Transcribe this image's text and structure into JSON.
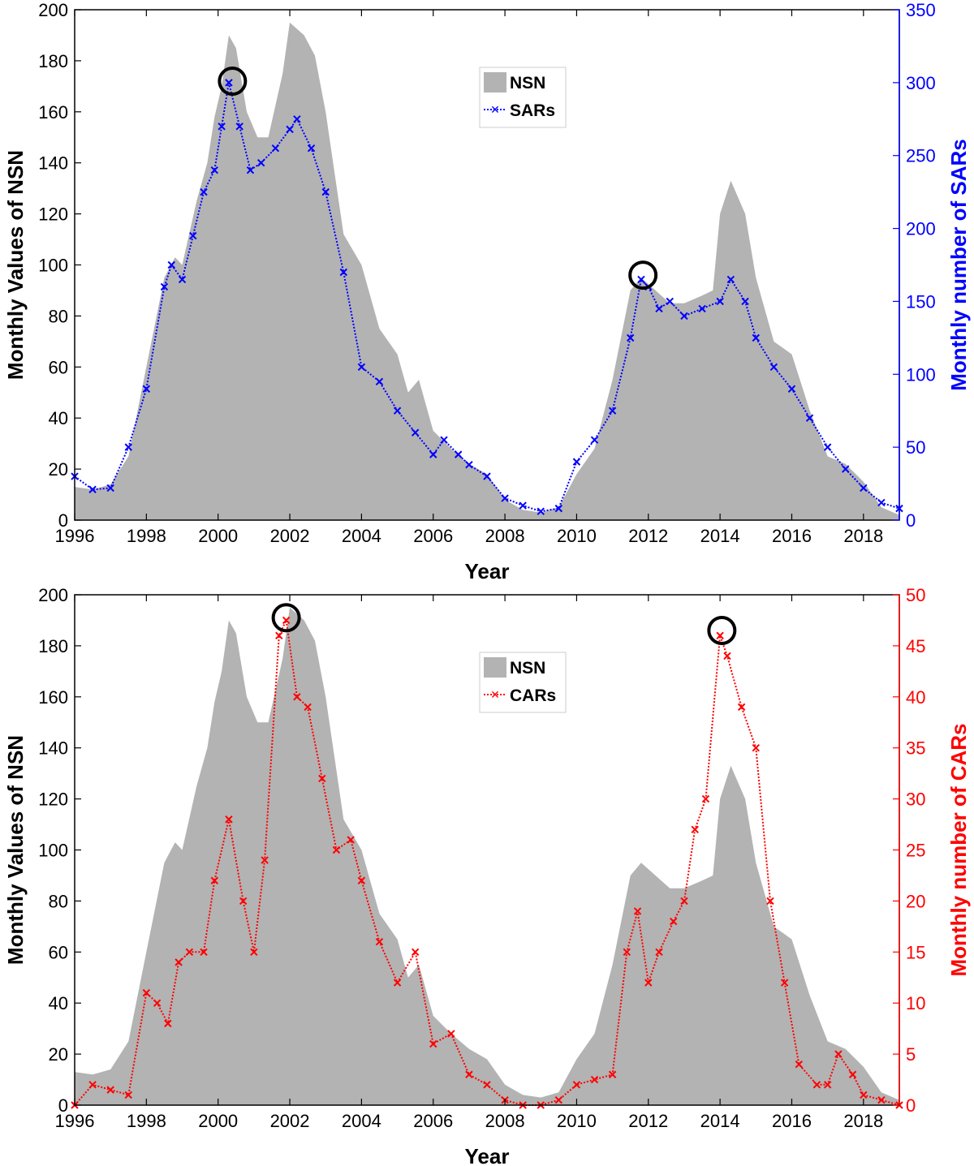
{
  "figure_title": "",
  "chart_data": [
    {
      "id": "top",
      "type": "area+line",
      "xlabel": "Year",
      "ylabel_left": "Monthly Values of NSN",
      "ylabel_right": "Monthly number of SARs",
      "xlim": [
        1996,
        2019
      ],
      "xticks": [
        1996,
        1998,
        2000,
        2002,
        2004,
        2006,
        2008,
        2010,
        2012,
        2014,
        2016,
        2018
      ],
      "ylim_left": [
        0,
        200
      ],
      "yticks_left": [
        0,
        20,
        40,
        60,
        80,
        100,
        120,
        140,
        160,
        180,
        200
      ],
      "ylim_right": [
        0,
        350
      ],
      "yticks_right": [
        0,
        50,
        100,
        150,
        200,
        250,
        300,
        350
      ],
      "legend_position": "top-center",
      "colors": {
        "area": "#b3b3b3",
        "series": "#0000ff",
        "right_axis": "#0000ff",
        "circle": "#000000"
      },
      "series": [
        {
          "name": "NSN",
          "style": "area",
          "axis": "left",
          "x": [
            1996,
            1996.5,
            1997,
            1997.5,
            1998,
            1998.5,
            1998.8,
            1999,
            1999.4,
            1999.7,
            1999.9,
            2000.1,
            2000.3,
            2000.5,
            2000.8,
            2001.1,
            2001.4,
            2001.8,
            2002,
            2002.4,
            2002.7,
            2003,
            2003.5,
            2004,
            2004.5,
            2005,
            2005.3,
            2005.6,
            2006,
            2006.5,
            2007,
            2007.5,
            2008,
            2008.5,
            2009,
            2009.5,
            2010,
            2010.5,
            2011,
            2011.5,
            2011.8,
            2012.2,
            2012.6,
            2013,
            2013.5,
            2013.8,
            2014,
            2014.3,
            2014.7,
            2015,
            2015.5,
            2016,
            2016.5,
            2017,
            2017.5,
            2018,
            2018.5,
            2019
          ],
          "values": [
            13,
            12,
            14,
            25,
            60,
            95,
            103,
            100,
            125,
            140,
            158,
            170,
            190,
            185,
            160,
            150,
            150,
            175,
            195,
            190,
            182,
            160,
            112,
            100,
            75,
            65,
            50,
            55,
            35,
            28,
            22,
            18,
            8,
            4,
            3,
            5,
            18,
            28,
            55,
            90,
            95,
            90,
            85,
            85,
            88,
            90,
            120,
            133,
            120,
            95,
            70,
            65,
            43,
            25,
            22,
            15,
            5,
            2
          ]
        },
        {
          "name": "SARs",
          "style": "line-x-dotted",
          "axis": "right",
          "x": [
            1996,
            1996.5,
            1997,
            1997.5,
            1998,
            1998.5,
            1998.7,
            1999,
            1999.3,
            1999.6,
            1999.9,
            2000.1,
            2000.3,
            2000.6,
            2000.9,
            2001.2,
            2001.6,
            2002,
            2002.2,
            2002.6,
            2003,
            2003.5,
            2004,
            2004.5,
            2005,
            2005.5,
            2006,
            2006.3,
            2006.7,
            2007,
            2007.5,
            2008,
            2008.5,
            2009,
            2009.5,
            2010,
            2010.5,
            2011,
            2011.5,
            2011.8,
            2012,
            2012.3,
            2012.6,
            2013,
            2013.5,
            2014,
            2014.3,
            2014.7,
            2015,
            2015.5,
            2016,
            2016.5,
            2017,
            2017.5,
            2018,
            2018.5,
            2019
          ],
          "values": [
            30,
            21,
            22,
            50,
            90,
            160,
            175,
            165,
            195,
            225,
            240,
            270,
            300,
            270,
            240,
            245,
            255,
            268,
            275,
            255,
            225,
            170,
            105,
            95,
            75,
            60,
            45,
            55,
            45,
            38,
            30,
            15,
            10,
            6,
            8,
            40,
            55,
            75,
            125,
            165,
            160,
            145,
            150,
            140,
            145,
            150,
            165,
            150,
            125,
            105,
            90,
            70,
            50,
            35,
            22,
            12,
            8
          ]
        }
      ],
      "annotations": [
        {
          "type": "circle",
          "x": 2000.4,
          "y_left": 172
        },
        {
          "type": "circle",
          "x": 2011.85,
          "y_left": 96
        }
      ]
    },
    {
      "id": "bottom",
      "type": "area+line",
      "xlabel": "Year",
      "ylabel_left": "Monthly Values of NSN",
      "ylabel_right": "Monthly number of CARs",
      "xlim": [
        1996,
        2019
      ],
      "xticks": [
        1996,
        1998,
        2000,
        2002,
        2004,
        2006,
        2008,
        2010,
        2012,
        2014,
        2016,
        2018
      ],
      "ylim_left": [
        0,
        200
      ],
      "yticks_left": [
        0,
        20,
        40,
        60,
        80,
        100,
        120,
        140,
        160,
        180,
        200
      ],
      "ylim_right": [
        0,
        50
      ],
      "yticks_right": [
        0,
        5,
        10,
        15,
        20,
        25,
        30,
        35,
        40,
        45,
        50
      ],
      "legend_position": "top-center",
      "colors": {
        "area": "#b3b3b3",
        "series": "#ff0000",
        "right_axis": "#ff0000",
        "circle": "#000000"
      },
      "series": [
        {
          "name": "NSN",
          "style": "area",
          "axis": "left",
          "x": [
            1996,
            1996.5,
            1997,
            1997.5,
            1998,
            1998.5,
            1998.8,
            1999,
            1999.4,
            1999.7,
            1999.9,
            2000.1,
            2000.3,
            2000.5,
            2000.8,
            2001.1,
            2001.4,
            2001.8,
            2002,
            2002.4,
            2002.7,
            2003,
            2003.5,
            2004,
            2004.5,
            2005,
            2005.3,
            2005.6,
            2006,
            2006.5,
            2007,
            2007.5,
            2008,
            2008.5,
            2009,
            2009.5,
            2010,
            2010.5,
            2011,
            2011.5,
            2011.8,
            2012.2,
            2012.6,
            2013,
            2013.5,
            2013.8,
            2014,
            2014.3,
            2014.7,
            2015,
            2015.5,
            2016,
            2016.5,
            2017,
            2017.5,
            2018,
            2018.5,
            2019
          ],
          "values": [
            13,
            12,
            14,
            25,
            60,
            95,
            103,
            100,
            125,
            140,
            158,
            170,
            190,
            185,
            160,
            150,
            150,
            175,
            195,
            190,
            182,
            160,
            112,
            100,
            75,
            65,
            50,
            55,
            35,
            28,
            22,
            18,
            8,
            4,
            3,
            5,
            18,
            28,
            55,
            90,
            95,
            90,
            85,
            85,
            88,
            90,
            120,
            133,
            120,
            95,
            70,
            65,
            43,
            25,
            22,
            15,
            5,
            2
          ]
        },
        {
          "name": "CARs",
          "style": "line-x-dotted",
          "axis": "right",
          "x": [
            1996,
            1996.5,
            1997,
            1997.5,
            1998,
            1998.3,
            1998.6,
            1998.9,
            1999.2,
            1999.6,
            1999.9,
            2000.3,
            2000.7,
            2001,
            2001.3,
            2001.7,
            2001.9,
            2002.2,
            2002.5,
            2002.9,
            2003.3,
            2003.7,
            2004,
            2004.5,
            2005,
            2005.5,
            2006,
            2006.5,
            2007,
            2007.5,
            2008,
            2008.5,
            2009,
            2009.5,
            2010,
            2010.5,
            2011,
            2011.4,
            2011.7,
            2012,
            2012.3,
            2012.7,
            2013,
            2013.3,
            2013.6,
            2014,
            2014.2,
            2014.6,
            2015,
            2015.4,
            2015.8,
            2016.2,
            2016.7,
            2017,
            2017.3,
            2017.7,
            2018,
            2018.5,
            2019
          ],
          "values": [
            0,
            2,
            1.5,
            1,
            11,
            10,
            8,
            14,
            15,
            15,
            22,
            28,
            20,
            15,
            24,
            46,
            47.5,
            40,
            39,
            32,
            25,
            26,
            22,
            16,
            12,
            15,
            6,
            7,
            3,
            2,
            0.5,
            0,
            0,
            0.5,
            2,
            2.5,
            3,
            15,
            19,
            12,
            15,
            18,
            20,
            27,
            30,
            46,
            44,
            39,
            35,
            20,
            12,
            4,
            2,
            2,
            5,
            3,
            1,
            0.5,
            0
          ]
        }
      ],
      "annotations": [
        {
          "type": "circle",
          "x": 2001.9,
          "y_left": 191
        },
        {
          "type": "circle",
          "x": 2014.05,
          "y_left": 186
        }
      ]
    }
  ]
}
